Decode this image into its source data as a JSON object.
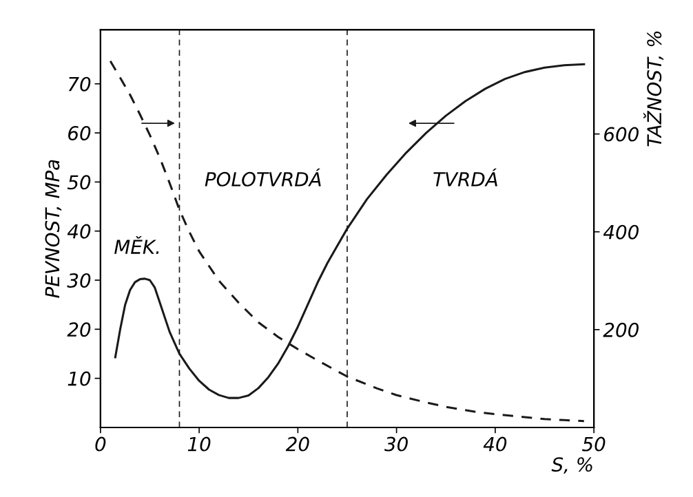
{
  "chart_data": {
    "type": "line",
    "xlabel": "S, %",
    "ylabel": "PEVNOST, MPa",
    "y2label": "TAŽNOST, %",
    "xlim": [
      0,
      50
    ],
    "xticks": [
      0,
      10,
      20,
      30,
      40,
      50
    ],
    "ylim": [
      0,
      81
    ],
    "yticks": [
      10,
      20,
      30,
      40,
      50,
      60,
      70
    ],
    "y2lim": [
      0,
      813
    ],
    "y2ticks": [
      200,
      400,
      600
    ],
    "grid": false,
    "marker": "none",
    "series": [
      {
        "color": "#1a1a1a",
        "line_style": "solid",
        "x": [
          1.5,
          2,
          2.5,
          3,
          3.5,
          4,
          4.5,
          5,
          5.5,
          6,
          7,
          8,
          9,
          10,
          11,
          12,
          13,
          14,
          15,
          16,
          17,
          18,
          19,
          20,
          21,
          22,
          23,
          24,
          25,
          27,
          29,
          31,
          33,
          35,
          37,
          39,
          41,
          43,
          45,
          47,
          49
        ],
        "values": [
          14.3,
          20,
          25,
          28,
          29.6,
          30.2,
          30.3,
          30,
          28.5,
          25.5,
          19.5,
          15,
          12,
          9.5,
          7.7,
          6.6,
          6,
          6,
          6.5,
          8,
          10.2,
          13,
          16.5,
          20.5,
          25,
          29.5,
          33.5,
          37,
          40.5,
          46.5,
          51.5,
          56,
          60,
          63.5,
          66.5,
          69,
          71,
          72.4,
          73.3,
          73.8,
          74
        ]
      },
      {
        "color": "#1a1a1a",
        "line_style": "dashed",
        "axis": "y2",
        "x": [
          1,
          2,
          3,
          4,
          5,
          6,
          7,
          8,
          9,
          10,
          12,
          14,
          16,
          18,
          20,
          22,
          25,
          28,
          30,
          33,
          35,
          38,
          40,
          43,
          45,
          47,
          49
        ],
        "values": [
          749,
          715,
          680,
          640,
          598,
          552,
          500,
          445,
          400,
          360,
          300,
          255,
          215,
          185,
          160,
          137,
          104,
          80,
          66,
          51,
          42,
          32,
          27,
          21,
          17,
          15,
          13
        ]
      }
    ],
    "ref_lines": [
      {
        "axis": "x",
        "value": 8,
        "line_style": "dashed",
        "color": "#1a1a1a"
      },
      {
        "axis": "x",
        "value": 25,
        "line_style": "dashed",
        "color": "#1a1a1a"
      }
    ],
    "annotations": [
      "MĚK.",
      "POLOTVRDÁ",
      "TVRDÁ"
    ]
  }
}
